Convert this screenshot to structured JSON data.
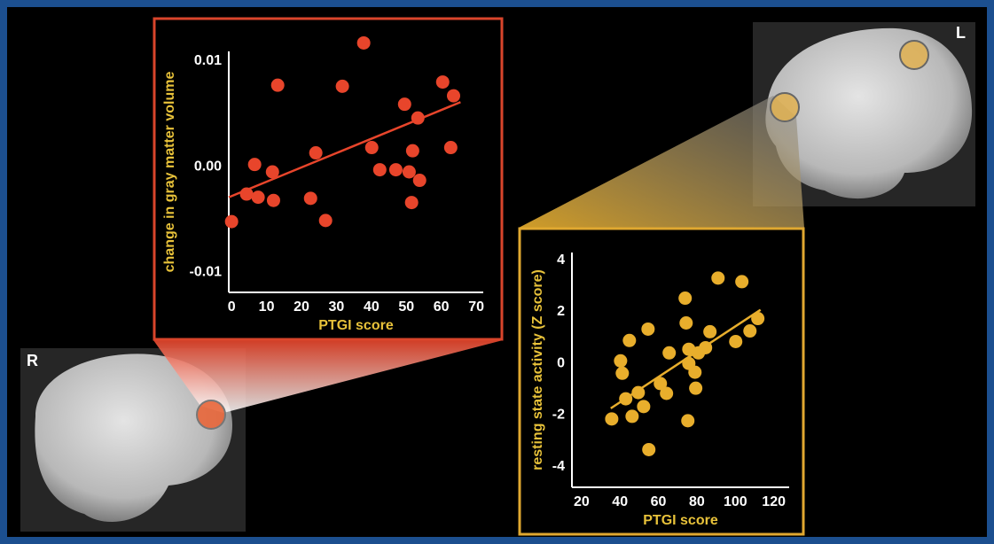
{
  "chart_data": [
    {
      "type": "scatter",
      "xlabel": "PTGI score",
      "ylabel": "change in gray matter volume",
      "color": "#e8452b",
      "x": [
        0,
        4.3,
        6.6,
        7.6,
        11.7,
        12,
        13.2,
        22.6,
        24.1,
        26.9,
        31.7,
        37.8,
        40.1,
        42.4,
        47,
        49.5,
        50.8,
        51.8,
        51.5,
        53.3,
        53.8,
        60.4,
        62.7,
        63.5
      ],
      "values": [
        -0.0052,
        -0.0026,
        0.0002,
        -0.0029,
        -0.0005,
        -0.0032,
        0.0077,
        -0.003,
        0.0013,
        -0.0051,
        0.0076,
        0.0117,
        0.0018,
        -0.0003,
        -0.0003,
        0.0059,
        -0.0005,
        0.0015,
        -0.0034,
        0.0046,
        -0.0013,
        0.008,
        0.0018,
        0.0067
      ],
      "trendline": {
        "x": [
          -0.8,
          65.5
        ],
        "y": [
          -0.0029,
          0.0061
        ]
      },
      "xlim": [
        -0.8,
        72
      ],
      "ylim": [
        -0.0119,
        0.0109
      ],
      "xticks": [
        0,
        10,
        20,
        30,
        40,
        50,
        60,
        70
      ],
      "yticks": [
        -0.01,
        {
          "value": 0,
          "label": "0.00"
        },
        0.01
      ]
    },
    {
      "type": "scatter",
      "xlabel": "PTGI score",
      "ylabel": "resting state activity (Z score)",
      "color": "#e8ae2c",
      "x": [
        35.7,
        40.3,
        41.2,
        43,
        44.9,
        46.3,
        49.5,
        52.3,
        54.6,
        55,
        61,
        64.2,
        65.6,
        73.9,
        74.4,
        75.3,
        75.8,
        75.8,
        79,
        79.4,
        80.8,
        84.5,
        86.8,
        91,
        100.2,
        103.4,
        107.6,
        111.7
      ],
      "values": [
        -2.15,
        0.1,
        -0.38,
        -1.37,
        0.89,
        -2.05,
        -1.13,
        -1.67,
        1.33,
        -3.34,
        -0.78,
        -1.16,
        0.41,
        2.53,
        1.57,
        -2.22,
        0.55,
        0,
        -0.34,
        -0.96,
        0.41,
        0.61,
        1.23,
        3.31,
        0.85,
        3.17,
        1.26,
        1.74
      ],
      "trendline": {
        "x": [
          35.2,
          113.1
        ],
        "y": [
          -1.74,
          2.08
        ]
      },
      "xlim": [
        15,
        128
      ],
      "ylim": [
        -4.8,
        4.3
      ],
      "xticks": [
        20,
        40,
        60,
        80,
        100,
        120
      ],
      "yticks": [
        -4,
        -2,
        0,
        2,
        4
      ]
    }
  ],
  "brain_labels": [
    "R",
    "L"
  ]
}
